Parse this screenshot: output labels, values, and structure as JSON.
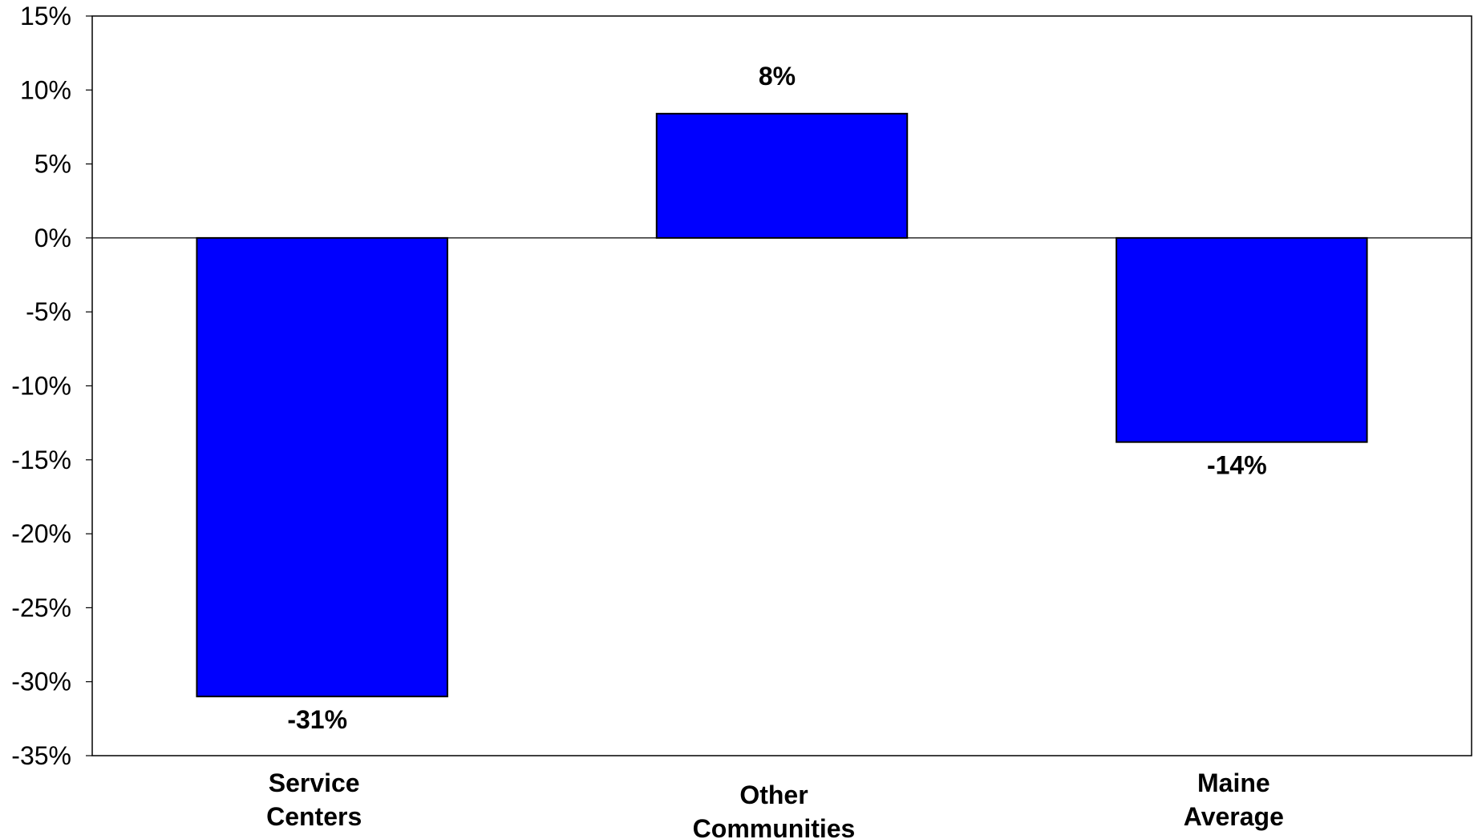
{
  "chart_data": {
    "type": "bar",
    "categories": [
      [
        "Service",
        "Centers"
      ],
      [
        "Other",
        "Communities"
      ],
      [
        "Maine",
        "Average"
      ]
    ],
    "values": [
      -31,
      8.4,
      -13.8
    ],
    "data_labels": [
      "-31%",
      "8%",
      "-14%"
    ],
    "ylim": [
      -35,
      15
    ],
    "yticks": [
      15,
      10,
      5,
      0,
      -5,
      -10,
      -15,
      -20,
      -25,
      -30,
      -35
    ],
    "ytick_labels": [
      "15%",
      "10%",
      "5%",
      "0%",
      "-5%",
      "-10%",
      "-15%",
      "-20%",
      "-25%",
      "-30%",
      "-35%"
    ],
    "title": "",
    "xlabel": "",
    "ylabel": "",
    "grid": false,
    "legend": "none",
    "bar_color": "#0000FF",
    "bar_border_color": "#000000"
  }
}
